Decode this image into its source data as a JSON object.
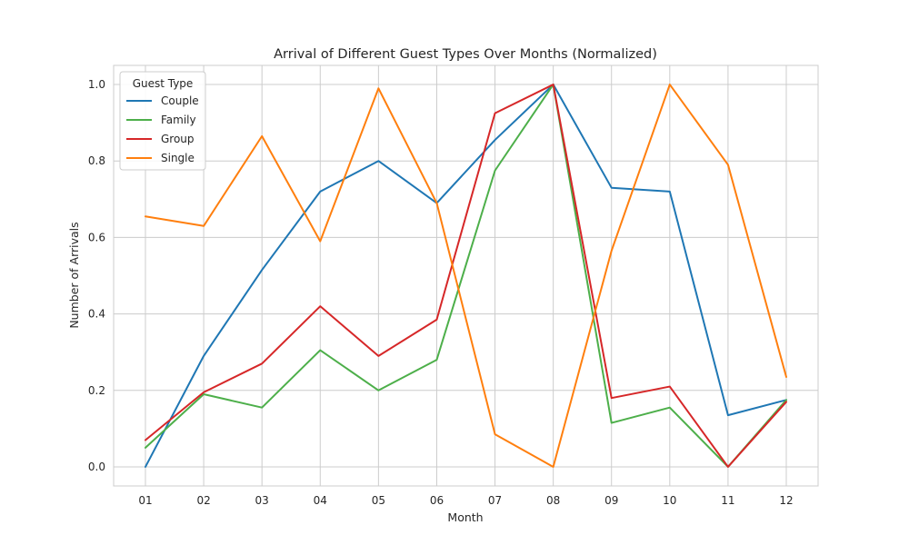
{
  "chart_data": {
    "type": "line",
    "title": "Arrival of Different Guest Types Over Months (Normalized)",
    "xlabel": "Month",
    "ylabel": "Number of Arrivals",
    "categories": [
      "01",
      "02",
      "03",
      "04",
      "05",
      "06",
      "07",
      "08",
      "09",
      "10",
      "11",
      "12"
    ],
    "ylim": [
      -0.05,
      1.05
    ],
    "yticks": [
      0.0,
      0.2,
      0.4,
      0.6,
      0.8,
      1.0
    ],
    "ytick_labels": [
      "0.0",
      "0.2",
      "0.4",
      "0.6",
      "0.8",
      "1.0"
    ],
    "grid": true,
    "legend": {
      "title": "Guest Type",
      "placement": "top-left"
    },
    "series": [
      {
        "name": "Couple",
        "color": "#1f77b4",
        "values": [
          0.0,
          0.29,
          0.515,
          0.72,
          0.8,
          0.69,
          0.855,
          1.0,
          0.73,
          0.72,
          0.135,
          0.175
        ]
      },
      {
        "name": "Family",
        "color": "#4daf4a",
        "values": [
          0.05,
          0.19,
          0.155,
          0.305,
          0.2,
          0.28,
          0.775,
          1.0,
          0.115,
          0.155,
          0.0,
          0.175
        ]
      },
      {
        "name": "Group",
        "color": "#d62728",
        "values": [
          0.07,
          0.195,
          0.27,
          0.42,
          0.29,
          0.385,
          0.925,
          1.0,
          0.18,
          0.21,
          0.0,
          0.17
        ]
      },
      {
        "name": "Single",
        "color": "#ff7f0e",
        "values": [
          0.655,
          0.63,
          0.865,
          0.59,
          0.99,
          0.69,
          0.085,
          0.0,
          0.565,
          1.0,
          0.79,
          0.235
        ]
      }
    ]
  }
}
